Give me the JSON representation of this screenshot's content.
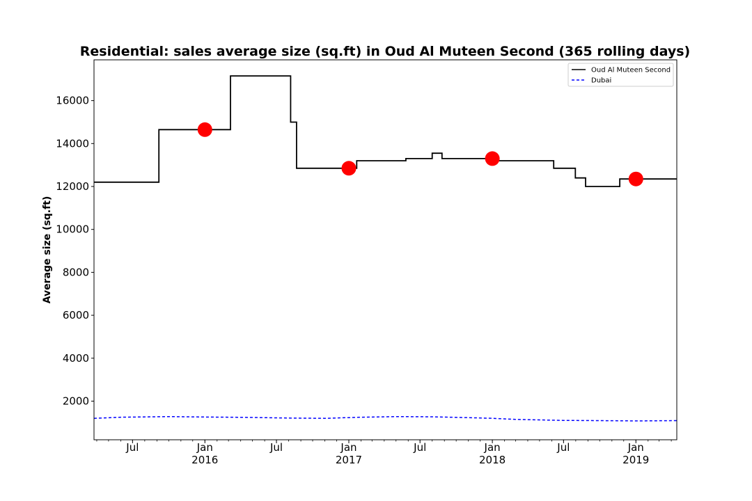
{
  "chart_data": {
    "type": "line",
    "title": "Residential: sales average size (sq.ft) in Oud Al Muteen Second (365 rolling days)",
    "xlabel": "",
    "ylabel": "Average size (sq.ft)",
    "xlim": [
      "2015-03-25",
      "2019-04-15"
    ],
    "ylim": [
      200,
      17900
    ],
    "y_ticks": [
      2000,
      4000,
      6000,
      8000,
      10000,
      12000,
      14000,
      16000
    ],
    "x_major_ticks": [
      {
        "date": "2015-07-01",
        "label": "Jul",
        "year": ""
      },
      {
        "date": "2016-01-01",
        "label": "Jan",
        "year": "2016"
      },
      {
        "date": "2016-07-01",
        "label": "Jul",
        "year": ""
      },
      {
        "date": "2017-01-01",
        "label": "Jan",
        "year": "2017"
      },
      {
        "date": "2017-07-01",
        "label": "Jul",
        "year": ""
      },
      {
        "date": "2018-01-01",
        "label": "Jan",
        "year": "2018"
      },
      {
        "date": "2018-07-01",
        "label": "Jul",
        "year": ""
      },
      {
        "date": "2019-01-01",
        "label": "Jan",
        "year": "2019"
      }
    ],
    "grid": false,
    "legend": "top-right",
    "series": [
      {
        "name": "Oud Al Muteen Second",
        "color": "#000000",
        "style": "solid",
        "step": true,
        "points": [
          [
            "2015-03-25",
            12200
          ],
          [
            "2015-09-06",
            14650
          ],
          [
            "2016-03-06",
            17150
          ],
          [
            "2016-08-06",
            15000
          ],
          [
            "2016-08-21",
            12850
          ],
          [
            "2017-01-21",
            13200
          ],
          [
            "2017-05-26",
            13300
          ],
          [
            "2017-08-01",
            13550
          ],
          [
            "2017-08-26",
            13300
          ],
          [
            "2018-01-06",
            13200
          ],
          [
            "2018-06-06",
            12850
          ],
          [
            "2018-07-31",
            12400
          ],
          [
            "2018-08-26",
            12000
          ],
          [
            "2018-11-21",
            12350
          ],
          [
            "2019-04-15",
            12350
          ]
        ]
      },
      {
        "name": "Dubai",
        "color": "#0000ff",
        "style": "dashed",
        "step": false,
        "points": [
          [
            "2015-03-25",
            1200
          ],
          [
            "2015-06-01",
            1250
          ],
          [
            "2015-10-01",
            1280
          ],
          [
            "2016-01-01",
            1260
          ],
          [
            "2016-05-01",
            1240
          ],
          [
            "2016-08-01",
            1210
          ],
          [
            "2016-11-01",
            1200
          ],
          [
            "2017-02-01",
            1250
          ],
          [
            "2017-05-01",
            1280
          ],
          [
            "2017-08-01",
            1270
          ],
          [
            "2017-11-01",
            1230
          ],
          [
            "2018-01-01",
            1200
          ],
          [
            "2018-03-01",
            1150
          ],
          [
            "2018-07-01",
            1100
          ],
          [
            "2018-10-01",
            1090
          ],
          [
            "2019-01-01",
            1080
          ],
          [
            "2019-04-15",
            1090
          ]
        ]
      }
    ],
    "markers": {
      "color": "#ff0000",
      "points": [
        [
          "2016-01-01",
          14650
        ],
        [
          "2017-01-01",
          12850
        ],
        [
          "2018-01-01",
          13300
        ],
        [
          "2019-01-01",
          12350
        ]
      ]
    }
  }
}
